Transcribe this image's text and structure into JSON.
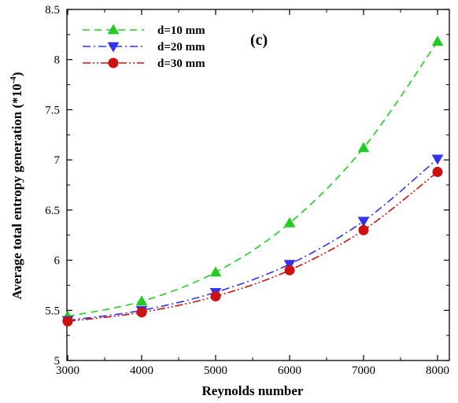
{
  "chart_data": {
    "type": "line",
    "xlabel": "Reynolds number",
    "ylabel_main": "Average total entropy generation (*10",
    "ylabel_sup": "-4",
    "ylabel_close": ")",
    "panel_label": "(c)",
    "xlim": [
      3000,
      8000
    ],
    "ylim": [
      5,
      8.5
    ],
    "x_ticks": [
      "3000",
      "4000",
      "5000",
      "6000",
      "7000",
      "8000"
    ],
    "y_ticks": [
      "5",
      "5.5",
      "6",
      "6.5",
      "7",
      "7.5",
      "8",
      "8.5"
    ],
    "x": [
      3000,
      4000,
      5000,
      6000,
      7000,
      8000
    ],
    "legend_position": "top-left",
    "series": [
      {
        "name": "d=10 mm",
        "color": "#22cc22",
        "marker": "triangle-up",
        "dash": "dashed",
        "values": [
          5.44,
          5.59,
          5.88,
          6.37,
          7.12,
          8.18
        ]
      },
      {
        "name": "d=20 mm",
        "color": "#3333ee",
        "marker": "triangle-down",
        "dash": "dashdot",
        "values": [
          5.4,
          5.5,
          5.68,
          5.96,
          6.39,
          7.01
        ]
      },
      {
        "name": "d=30 mm",
        "color": "#cc1111",
        "marker": "circle",
        "dash": "dashdotdot",
        "values": [
          5.39,
          5.48,
          5.64,
          5.9,
          6.3,
          6.88
        ]
      }
    ]
  }
}
